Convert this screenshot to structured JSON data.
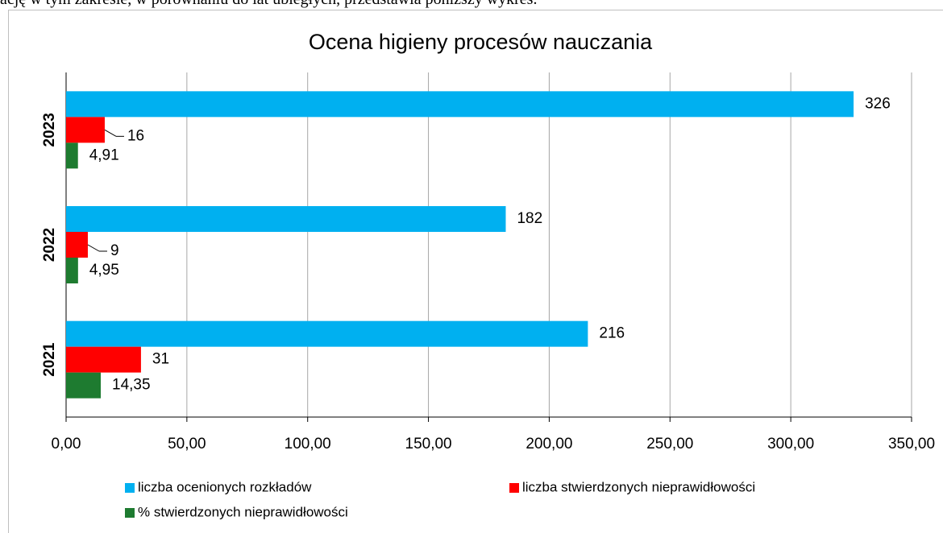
{
  "intro_text": "ację w tym zakresie, w porównaniu do lat ubiegłych, przedstawia poniższy wykres.",
  "chart_data": {
    "type": "hbar",
    "title": "Ocena higieny procesów nauczania",
    "categories": [
      "2021",
      "2022",
      "2023"
    ],
    "series": [
      {
        "name": "liczba ocenionych rozkładów",
        "color": "#00b0f0",
        "values": [
          216,
          182,
          326
        ]
      },
      {
        "name": "liczba stwierdzonych nieprawidłowości",
        "color": "#ff0000",
        "values": [
          31,
          9,
          16
        ]
      },
      {
        "name": "% stwierdzonych nieprawidłowości",
        "color": "#1e7b30",
        "values": [
          14.35,
          4.95,
          4.91
        ],
        "value_labels": [
          "14,35",
          "4,95",
          "4,91"
        ]
      }
    ],
    "xlim": [
      0,
      350
    ],
    "xticks": [
      {
        "value": 0,
        "label": "0,00"
      },
      {
        "value": 50,
        "label": "50,00"
      },
      {
        "value": 100,
        "label": "100,00"
      },
      {
        "value": 150,
        "label": "150,00"
      },
      {
        "value": 200,
        "label": "200,00"
      },
      {
        "value": 250,
        "label": "250,00"
      },
      {
        "value": 300,
        "label": "300,00"
      },
      {
        "value": 350,
        "label": "350,00"
      }
    ],
    "grid": true,
    "legend": "bottom"
  }
}
